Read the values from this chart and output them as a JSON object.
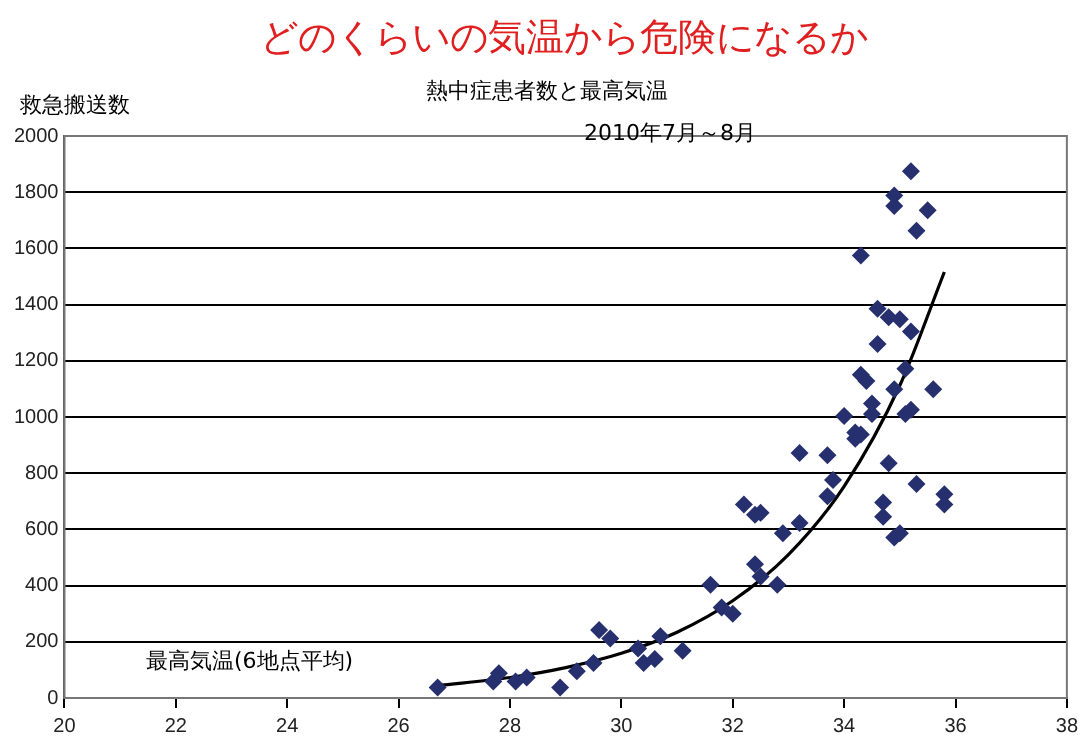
{
  "chart_data": {
    "type": "scatter",
    "title": "どのくらいの気温から危険になるか",
    "subtitle": "熱中症患者数と最高気温",
    "annotations": [
      "2010年7月～8月"
    ],
    "ylabel": "救急搬送数",
    "xlabel": "最高気温(6地点平均)",
    "xlim": [
      20,
      38
    ],
    "xticks": [
      20,
      22,
      24,
      26,
      28,
      30,
      32,
      34,
      36,
      38
    ],
    "ylim": [
      0,
      2000
    ],
    "yticks": [
      0,
      200,
      400,
      600,
      800,
      1000,
      1200,
      1400,
      1600,
      1800,
      2000
    ],
    "grid": "y",
    "legend": false,
    "marker": "diamond",
    "series": [
      {
        "type": "scatter",
        "color": "#27306e",
        "x": [
          26.7,
          27.7,
          27.8,
          28.1,
          28.3,
          28.9,
          29.2,
          29.5,
          29.6,
          29.8,
          30.3,
          30.4,
          30.6,
          30.7,
          31.1,
          31.6,
          31.8,
          32.0,
          32.2,
          32.4,
          32.5,
          32.4,
          32.5,
          32.8,
          32.9,
          33.2,
          33.2,
          33.7,
          33.7,
          33.8,
          34.2,
          34.8,
          35.3,
          34.7,
          34.7,
          35.0,
          34.9,
          35.8,
          35.8,
          35.2,
          34.9,
          34.9,
          35.5,
          35.3,
          34.3,
          34.6,
          34.8,
          35.0,
          35.2,
          34.6,
          34.3,
          34.4,
          35.1,
          34.9,
          35.6,
          34.5,
          34.5,
          35.1,
          35.2,
          34.0,
          34.2,
          34.3
        ],
        "values": [
          37,
          59,
          88,
          59,
          73,
          37,
          95,
          125,
          242,
          212,
          176,
          125,
          139,
          220,
          168,
          403,
          322,
          300,
          689,
          652,
          659,
          476,
          432,
          403,
          586,
          623,
          872,
          864,
          718,
          776,
          923,
          835,
          762,
          696,
          645,
          586,
          571,
          725,
          689,
          1875,
          1788,
          1751,
          1736,
          1663,
          1575,
          1385,
          1355,
          1348,
          1304,
          1260,
          1150,
          1128,
          1172,
          1099,
          1099,
          1048,
          1011,
          1011,
          1026,
          1004,
          945,
          938
        ]
      },
      {
        "type": "line",
        "color": "#000000",
        "marker": "none",
        "x": [
          26.7,
          28,
          29,
          30,
          31,
          32,
          33,
          34,
          35,
          35.8
        ],
        "values": [
          44,
          73,
          108,
          159,
          234,
          346,
          510,
          753,
          1112,
          1516
        ]
      }
    ]
  }
}
